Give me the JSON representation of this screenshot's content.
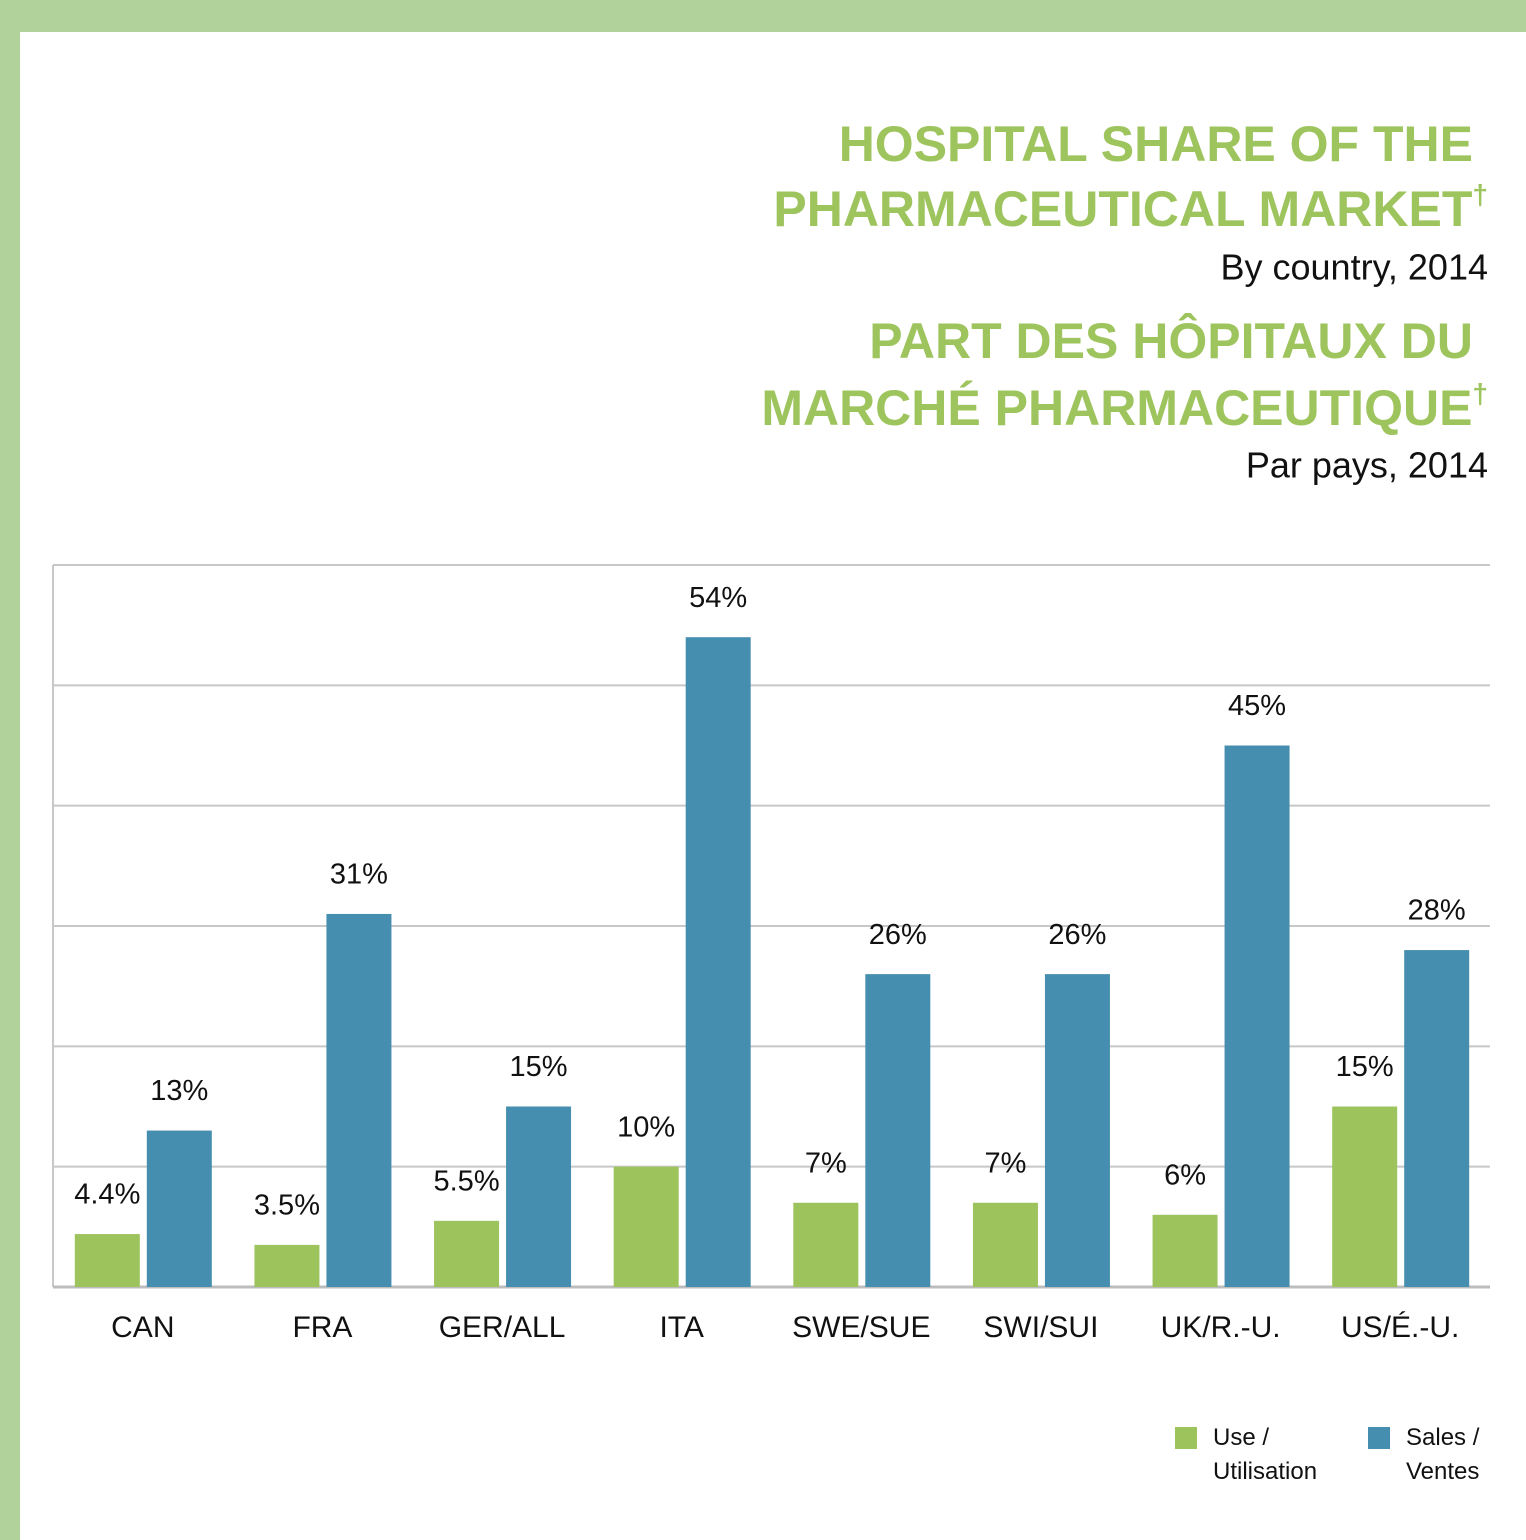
{
  "chart_data": {
    "type": "bar",
    "title": [
      "HOSPITAL SHARE OF THE",
      "PHARMACEUTICAL MARKET"
    ],
    "subtitle": "By country, 2014",
    "title_fr": [
      "PART DES HÔPITAUX DU",
      "MARCHÉ PHARMACEUTIQUE"
    ],
    "subtitle_fr": "Par pays, 2014",
    "note_mark": "†",
    "categories": [
      "CAN",
      "FRA",
      "GER/ALL",
      "ITA",
      "SWE/SUE",
      "SWI/SUI",
      "UK/R.-U.",
      "US/É.-U."
    ],
    "series": [
      {
        "name": "Use / Utilisation",
        "color": "#9dc35d",
        "values": [
          4.4,
          3.5,
          5.5,
          10,
          7,
          7,
          6,
          15
        ],
        "value_labels": [
          "4.4%",
          "3.5%",
          "5.5%",
          "10%",
          "7%",
          "7%",
          "6%",
          "15%"
        ]
      },
      {
        "name": "Sales / Ventes",
        "color": "#468eb0",
        "values": [
          13,
          31,
          15,
          54,
          26,
          26,
          45,
          28
        ],
        "value_labels": [
          "13%",
          "31%",
          "15%",
          "54%",
          "26%",
          "26%",
          "45%",
          "28%"
        ]
      }
    ],
    "ylim": [
      0,
      60
    ],
    "yticks": [
      0,
      10,
      20,
      30,
      40,
      50,
      60
    ],
    "grid": true
  }
}
